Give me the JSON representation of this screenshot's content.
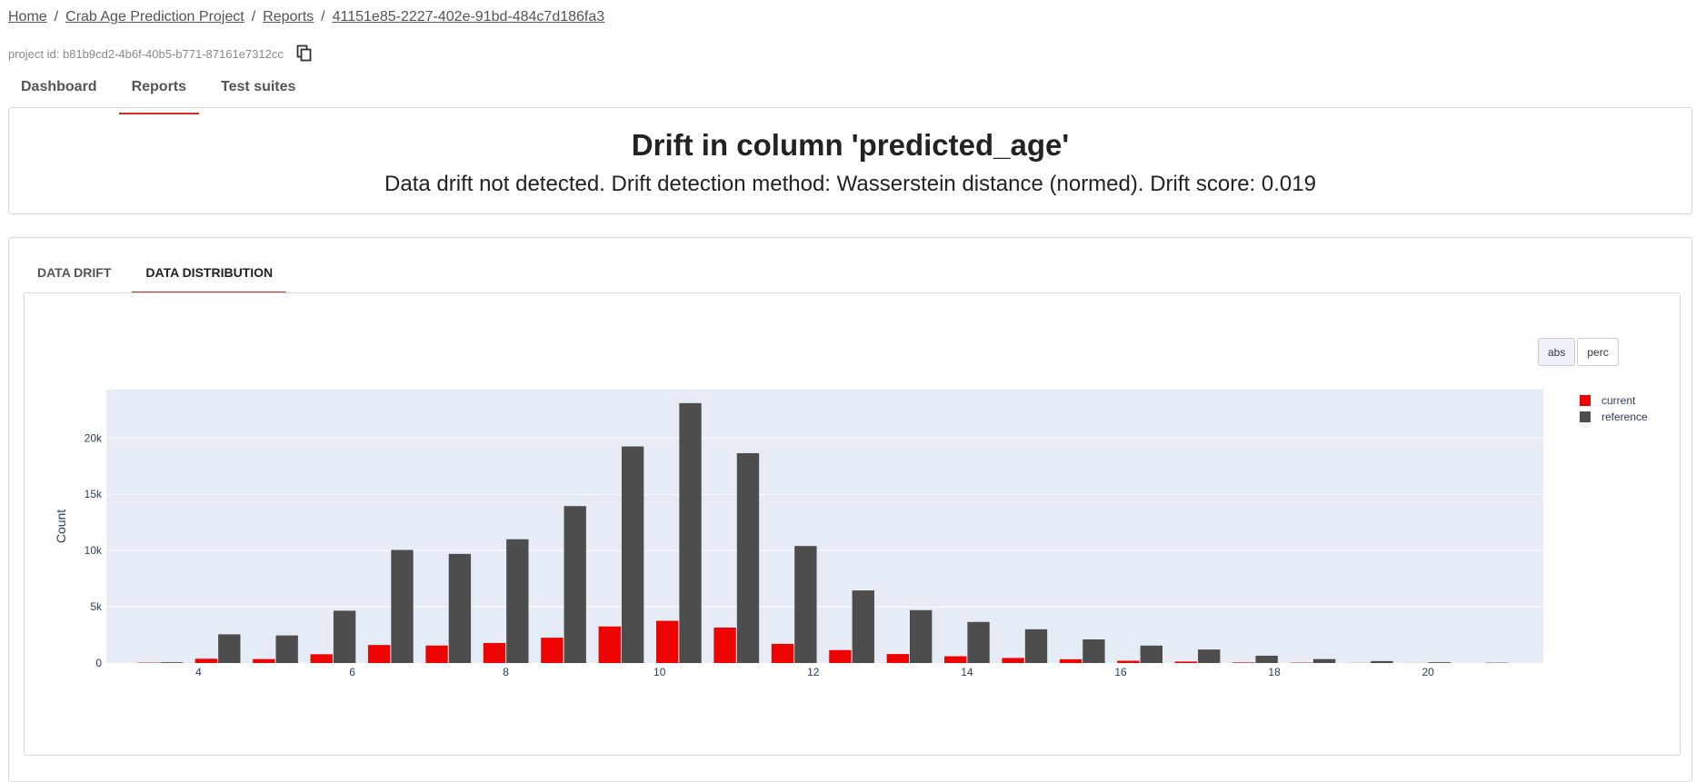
{
  "breadcrumb": {
    "home": "Home",
    "project": "Crab Age Prediction Project",
    "reports": "Reports",
    "report_id": "41151e85-2227-402e-91bd-484c7d186fa3",
    "separator": "/"
  },
  "project_id_text": "project id: b81b9cd2-4b6f-40b5-b771-87161e7312cc",
  "nav_tabs": {
    "dashboard": "Dashboard",
    "reports": "Reports",
    "test_suites": "Test suites"
  },
  "header": {
    "title": "Drift in column 'predicted_age'",
    "subtitle": "Data drift not detected. Drift detection method: Wasserstein distance (normed). Drift score: 0.019"
  },
  "widget_tabs": {
    "data_drift": "DATA DRIFT",
    "data_distribution": "DATA DISTRIBUTION"
  },
  "mode_buttons": {
    "abs": "abs",
    "perc": "perc",
    "selected": "abs"
  },
  "colors": {
    "current": "#ed0400",
    "reference": "#4d4d4d",
    "plot_bg": "#e5ecf6",
    "accent": "#d32f2f"
  },
  "chart_data": {
    "type": "bar",
    "ylabel": "Count",
    "xlabel": "",
    "xticks": [
      "4",
      "6",
      "8",
      "10",
      "12",
      "14",
      "16",
      "18",
      "20"
    ],
    "yticks": [
      "0",
      "5k",
      "10k",
      "15k",
      "20k"
    ],
    "xlim": [
      2.8,
      21.5
    ],
    "ylim": [
      0,
      24300
    ],
    "grid": true,
    "legend_position": "top-right",
    "x": [
      3.5,
      4.25,
      5,
      5.75,
      6.5,
      7.25,
      8,
      8.75,
      9.5,
      10.25,
      11,
      11.75,
      12.5,
      13.25,
      14,
      14.75,
      15.5,
      16.25,
      17,
      17.75,
      18.5,
      19.25,
      20,
      20.75
    ],
    "series": [
      {
        "name": "current",
        "color": "#ed0400",
        "values": [
          30,
          380,
          350,
          780,
          1600,
          1550,
          1780,
          2250,
          3250,
          3750,
          3150,
          1700,
          1150,
          800,
          600,
          450,
          330,
          200,
          130,
          50,
          30,
          10,
          5,
          0
        ]
      },
      {
        "name": "reference",
        "color": "#4d4d4d",
        "values": [
          70,
          2550,
          2450,
          4650,
          10050,
          9700,
          11000,
          13950,
          19250,
          23100,
          18650,
          10400,
          6450,
          4700,
          3650,
          3000,
          2100,
          1550,
          1200,
          650,
          350,
          170,
          70,
          30
        ]
      }
    ]
  }
}
